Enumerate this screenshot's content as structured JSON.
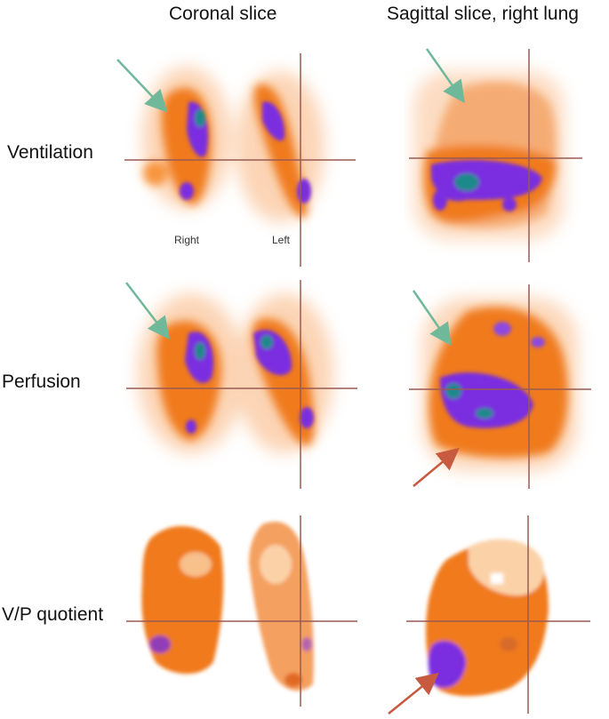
{
  "columns": {
    "coronal": "Coronal slice",
    "sagittal": "Sagittal slice, right lung"
  },
  "rows": {
    "ventilation": "Ventilation",
    "perfusion": "Perfusion",
    "vp": "V/P quotient"
  },
  "labels": {
    "right": "Right",
    "left": "Left"
  },
  "colors": {
    "crosshair": "#9a5a52",
    "green_arrow": "#6fb89a",
    "red_arrow": "#c85a40",
    "orange": "#f07a1a",
    "purple": "#7a2fe0",
    "teal": "#1f8a8a"
  },
  "panels": [
    {
      "name": "panel-ventilation-coronal",
      "arrows": [
        "green-arrow"
      ]
    },
    {
      "name": "panel-ventilation-sagittal",
      "arrows": [
        "green-arrow"
      ]
    },
    {
      "name": "panel-perfusion-coronal",
      "arrows": [
        "green-arrow"
      ]
    },
    {
      "name": "panel-perfusion-sagittal",
      "arrows": [
        "green-arrow",
        "red-arrow"
      ]
    },
    {
      "name": "panel-vp-coronal",
      "arrows": []
    },
    {
      "name": "panel-vp-sagittal",
      "arrows": [
        "red-arrow"
      ]
    }
  ]
}
